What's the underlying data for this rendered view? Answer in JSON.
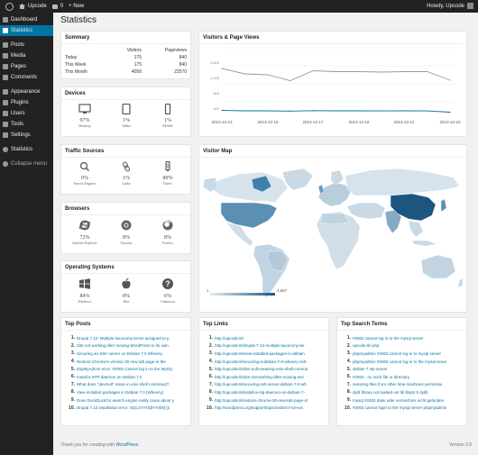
{
  "adminbar": {
    "site_name": "Upcode",
    "comments_count": "0",
    "new_label": "+ New",
    "howdy": "Howdy, Upcode"
  },
  "sidebar": {
    "items": [
      {
        "label": "Dashboard",
        "icon": "dashboard-icon"
      },
      {
        "label": "Statistics",
        "icon": "chart-icon",
        "active": true
      },
      {
        "label": "Posts",
        "icon": "pin-icon"
      },
      {
        "label": "Media",
        "icon": "media-icon"
      },
      {
        "label": "Pages",
        "icon": "page-icon"
      },
      {
        "label": "Comments",
        "icon": "comment-icon"
      },
      {
        "label": "Appearance",
        "icon": "brush-icon"
      },
      {
        "label": "Plugins",
        "icon": "plug-icon"
      },
      {
        "label": "Users",
        "icon": "user-icon"
      },
      {
        "label": "Tools",
        "icon": "wrench-icon"
      },
      {
        "label": "Settings",
        "icon": "settings-icon"
      },
      {
        "label": "Statistics",
        "icon": "chart-icon"
      },
      {
        "label": "Collapse menu",
        "icon": "collapse-icon"
      }
    ]
  },
  "page": {
    "title": "Statistics"
  },
  "summary": {
    "title": "Summary",
    "headers": [
      "",
      "Visitors",
      "Pageviews"
    ],
    "rows": [
      [
        "Today",
        "175",
        "840"
      ],
      [
        "This Week",
        "175",
        "840"
      ],
      [
        "This Month",
        "4056",
        "22570"
      ]
    ]
  },
  "devices": {
    "title": "Devices",
    "items": [
      {
        "value": "97%",
        "label": "Desktop",
        "icon": "monitor-icon"
      },
      {
        "value": "1%",
        "label": "Tablet",
        "icon": "tablet-icon"
      },
      {
        "value": "1%",
        "label": "Mobile",
        "icon": "phone-icon"
      }
    ]
  },
  "traffic": {
    "title": "Traffic Sources",
    "items": [
      {
        "value": "0%",
        "label": "Search Engines",
        "icon": "search-icon"
      },
      {
        "value": "1%",
        "label": "Links",
        "icon": "link-icon"
      },
      {
        "value": "89%",
        "label": "Direct",
        "icon": "direct-icon"
      }
    ]
  },
  "browsers": {
    "title": "Browsers",
    "items": [
      {
        "value": "72%",
        "label": "Internet Explorer",
        "icon": "ie-icon"
      },
      {
        "value": "8%",
        "label": "Chrome",
        "icon": "chrome-icon"
      },
      {
        "value": "8%",
        "label": "Firefox",
        "icon": "firefox-icon"
      }
    ]
  },
  "os": {
    "title": "Operating Systems",
    "items": [
      {
        "value": "84%",
        "label": "Windows",
        "icon": "windows-icon"
      },
      {
        "value": "8%",
        "label": "Mac",
        "icon": "apple-icon"
      },
      {
        "value": "6%",
        "label": "Unknown",
        "icon": "question-icon"
      }
    ]
  },
  "visitors_chart": {
    "title": "Visitors & Page Views",
    "y_ticks": [
      "1,600",
      "1,200",
      "800",
      "400"
    ],
    "x_ticks": [
      "2013-12-13",
      "2013-12-15",
      "2013-12-17",
      "2013-12-19",
      "2013-12-21",
      "2013-12-23"
    ]
  },
  "chart_data": {
    "type": "line",
    "x": [
      "2013-12-13",
      "2013-12-14",
      "2013-12-15",
      "2013-12-16",
      "2013-12-17",
      "2013-12-18",
      "2013-12-19",
      "2013-12-20",
      "2013-12-21",
      "2013-12-22",
      "2013-12-23"
    ],
    "ylim": [
      0,
      1600
    ],
    "y_ticks": [
      400,
      800,
      1200,
      1600
    ],
    "series": [
      {
        "color": "#999999",
        "values": [
          1140,
          1020,
          1000,
          870,
          1090,
          1070,
          1070,
          1060,
          1070,
          1070,
          880
        ]
      },
      {
        "color": "#0074a2",
        "values": [
          210,
          200,
          200,
          195,
          205,
          200,
          200,
          198,
          200,
          198,
          170
        ]
      }
    ],
    "grid": true
  },
  "map": {
    "title": "Visitor Map",
    "legend_min": "1",
    "legend_max": "4,687"
  },
  "top_posts": {
    "title": "Top Posts",
    "items": [
      "Drupal 7.12: Multiple taxonomy terms assigned to p",
      "Site not working after moving WordPress to its own",
      "Securing an SSH server on Debian 7.0 Wheezy",
      "Restore Chrome's version 30 new tab page to the",
      "phpMyAdmin error: #2002 Cannot log in to the MySQ",
      "Install a NTP daemon on Debian 7.0",
      "What does \"dev/null\" mean in unix shell command?",
      "View installed packages in Debian 7.0 (Wheezy)",
      "Does DuckDuckGo search engine really cares about y",
      "Drupal 7.12 installation error: SQLSTATE[HY000] [2"
    ]
  },
  "top_links": {
    "title": "Top Links",
    "items": [
      "http://upcode.tk/",
      "http://upcode.tk/drupal-7-12-multiple-taxonomy-ter",
      "http://upcode.tk/view-installed-packages-in-debian",
      "http://upcode.tk/securing-a-debian-7-0-wheezy-ssh-",
      "http://upcode.tk/dev-null-meaning-unix-shell-comma",
      "http://upcode.tk/site-not-working-after-moving-wor",
      "http://upcode.tk/securing-ssh-server-debian-7-0-wh",
      "http://upcode.tk/install-a-ntp-daemon-on-debian-7-",
      "http://upcode.tk/restore-chrome-30-new-tab-page-ol",
      "http://wordpress.org/support/topic/redirect-not-wo"
    ]
  },
  "top_search": {
    "title": "Top Search Terms",
    "items": [
      "#2002 cannot log in to the mysql server",
      "upcode.tk/ php",
      "phpmyadmin #2002 cannot log in to mysql server",
      "phpmyadmin #2002 cannot log in to the mysql serve",
      "debian 7 ntp server",
      "#2002 - no such file or directory",
      "restoring files from other time machines permissio",
      "dyld library not loaded usr lib libqt4 5 dylib",
      "mysql #2002 datei oder verzeichnis nicht gefunden",
      "#2002 cannot login to the mysql server phpmyadmin"
    ]
  },
  "footer": {
    "thanks_prefix": "Thank you for creating with ",
    "thanks_link": "WordPress",
    "thanks_suffix": ".",
    "version": "Version 3.8"
  },
  "colors": {
    "accent": "#0074a2",
    "sidebar_bg": "#222222",
    "map_low": "#c9d9e5",
    "map_high": "#1c5680"
  }
}
